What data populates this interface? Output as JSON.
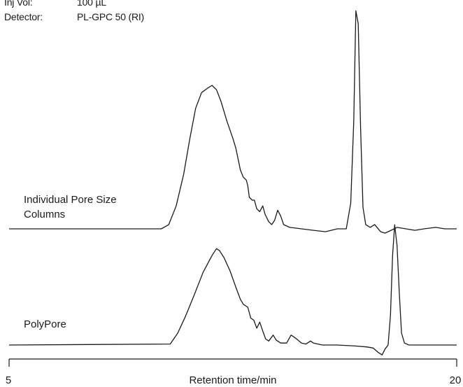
{
  "conditions": [
    {
      "label": "Inj Vol:",
      "value": "100 µL"
    },
    {
      "label": "Detector:",
      "value": "PL-GPC 50 (RI)"
    }
  ],
  "chart_data": {
    "type": "line",
    "title": "",
    "xlabel": "Retention time/min",
    "ylabel": "",
    "xlim": [
      5,
      20
    ],
    "x_tick_labels": [
      "5",
      "20"
    ],
    "grid": false,
    "legend": "none",
    "color": "#1a1a1a",
    "series": [
      {
        "name": "Individual Pore Size Columns",
        "label_lines": [
          "Individual Pore Size",
          "Columns"
        ],
        "baseline": 0,
        "points": [
          [
            5.0,
            0
          ],
          [
            10.1,
            0
          ],
          [
            10.35,
            0.03
          ],
          [
            10.6,
            0.16
          ],
          [
            10.85,
            0.38
          ],
          [
            11.05,
            0.62
          ],
          [
            11.25,
            0.84
          ],
          [
            11.45,
            0.95
          ],
          [
            11.65,
            0.98
          ],
          [
            11.8,
            1.0
          ],
          [
            11.95,
            0.97
          ],
          [
            12.1,
            0.89
          ],
          [
            12.3,
            0.75
          ],
          [
            12.5,
            0.63
          ],
          [
            12.6,
            0.56
          ],
          [
            12.75,
            0.41
          ],
          [
            12.85,
            0.36
          ],
          [
            12.95,
            0.34
          ],
          [
            13.0,
            0.3
          ],
          [
            13.05,
            0.22
          ],
          [
            13.15,
            0.2
          ],
          [
            13.22,
            0.2
          ],
          [
            13.3,
            0.14
          ],
          [
            13.4,
            0.12
          ],
          [
            13.5,
            0.16
          ],
          [
            13.58,
            0.1
          ],
          [
            13.7,
            0.05
          ],
          [
            13.8,
            0.03
          ],
          [
            13.9,
            0.06
          ],
          [
            14.0,
            0.13
          ],
          [
            14.1,
            0.09
          ],
          [
            14.2,
            0.03
          ],
          [
            14.4,
            0.01
          ],
          [
            14.8,
            0.0
          ],
          [
            15.2,
            -0.01
          ],
          [
            15.6,
            -0.02
          ],
          [
            16.0,
            0.0
          ],
          [
            16.3,
            0.0
          ],
          [
            16.45,
            0.18
          ],
          [
            16.55,
            0.75
          ],
          [
            16.62,
            1.52
          ],
          [
            16.7,
            1.43
          ],
          [
            16.78,
            0.7
          ],
          [
            16.86,
            0.15
          ],
          [
            16.95,
            0.03
          ],
          [
            17.1,
            0.01
          ],
          [
            17.25,
            0.03
          ],
          [
            17.45,
            -0.02
          ],
          [
            17.6,
            -0.03
          ],
          [
            17.8,
            -0.01
          ],
          [
            18.0,
            0.01
          ],
          [
            18.3,
            0.0
          ],
          [
            18.6,
            -0.01
          ],
          [
            18.9,
            0.0
          ],
          [
            19.3,
            0.01
          ],
          [
            19.6,
            0.0
          ],
          [
            20.0,
            0.0
          ]
        ]
      },
      {
        "name": "PolyPore",
        "label_lines": [
          "PolyPore"
        ],
        "baseline": 0,
        "points": [
          [
            5.0,
            0
          ],
          [
            10.4,
            0.01
          ],
          [
            10.65,
            0.12
          ],
          [
            10.9,
            0.28
          ],
          [
            11.2,
            0.5
          ],
          [
            11.5,
            0.73
          ],
          [
            11.8,
            0.9
          ],
          [
            11.95,
            0.97
          ],
          [
            12.05,
            0.95
          ],
          [
            12.2,
            0.88
          ],
          [
            12.4,
            0.75
          ],
          [
            12.6,
            0.58
          ],
          [
            12.75,
            0.46
          ],
          [
            12.85,
            0.41
          ],
          [
            13.0,
            0.38
          ],
          [
            13.1,
            0.27
          ],
          [
            13.2,
            0.25
          ],
          [
            13.3,
            0.17
          ],
          [
            13.4,
            0.23
          ],
          [
            13.5,
            0.14
          ],
          [
            13.6,
            0.06
          ],
          [
            13.7,
            0.04
          ],
          [
            13.85,
            0.1
          ],
          [
            13.95,
            0.05
          ],
          [
            14.1,
            0.02
          ],
          [
            14.3,
            0.02
          ],
          [
            14.45,
            0.1
          ],
          [
            14.6,
            0.07
          ],
          [
            14.8,
            0.02
          ],
          [
            14.95,
            0.01
          ],
          [
            15.1,
            0.04
          ],
          [
            15.2,
            0.02
          ],
          [
            15.5,
            0.0
          ],
          [
            16.0,
            0.0
          ],
          [
            16.6,
            -0.01
          ],
          [
            17.0,
            -0.02
          ],
          [
            17.2,
            -0.03
          ],
          [
            17.35,
            -0.07
          ],
          [
            17.5,
            -0.1
          ],
          [
            17.6,
            -0.04
          ],
          [
            17.7,
            0.0
          ],
          [
            17.78,
            0.3
          ],
          [
            17.85,
            0.9
          ],
          [
            17.92,
            1.21
          ],
          [
            18.0,
            1.0
          ],
          [
            18.08,
            0.5
          ],
          [
            18.15,
            0.12
          ],
          [
            18.25,
            0.02
          ],
          [
            18.4,
            0.0
          ],
          [
            20.0,
            0.0
          ]
        ]
      }
    ]
  }
}
